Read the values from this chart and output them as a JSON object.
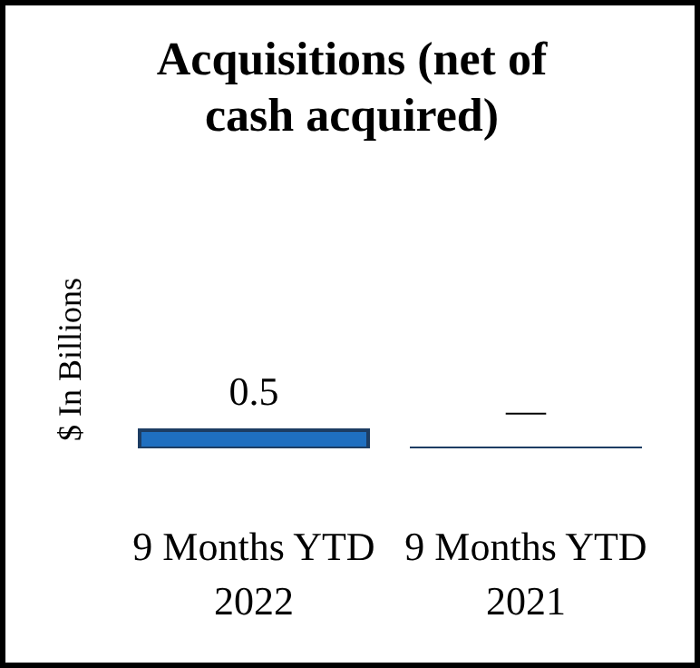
{
  "chart_data": {
    "type": "bar",
    "title": "Acquisitions (net of cash acquired)",
    "ylabel": "$ In Billions",
    "categories": [
      "9 Months YTD 2022",
      "9 Months YTD 2021"
    ],
    "values": [
      0.5,
      0
    ],
    "value_labels": [
      "0.5",
      "—"
    ],
    "color": "#1f6fc0"
  }
}
